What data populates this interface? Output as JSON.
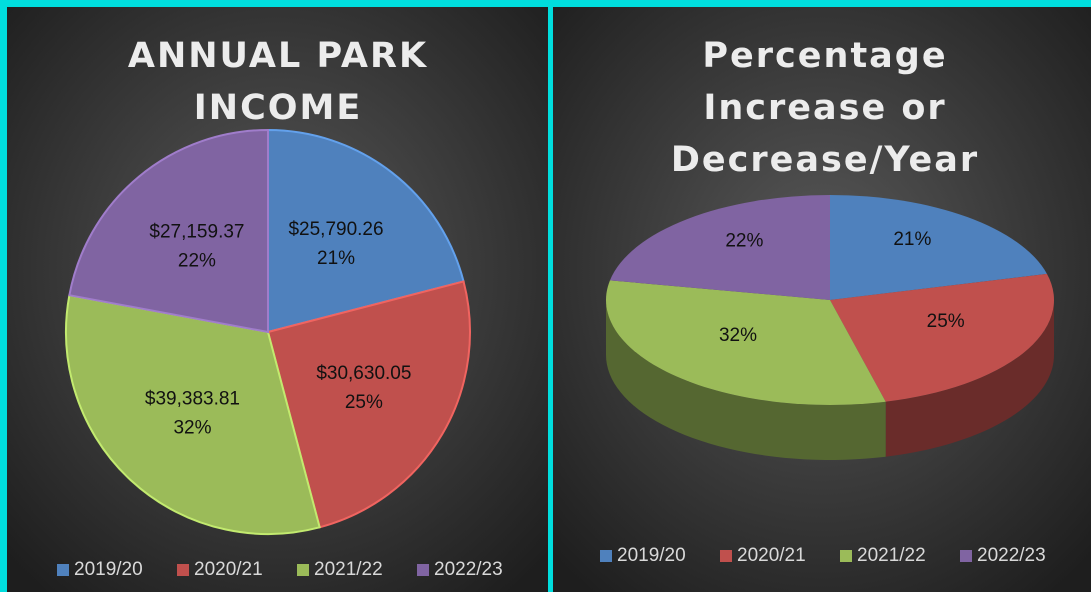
{
  "chart_data": [
    {
      "type": "pie",
      "title": "ANNUAL PARK INCOME",
      "categories": [
        "2019/20",
        "2020/21",
        "2021/22",
        "2022/23"
      ],
      "values": [
        25790.26,
        30630.05,
        39383.81,
        27159.37
      ],
      "value_labels": [
        "$25,790.26",
        "$30,630.05",
        "$39,383.81",
        "$27,159.37"
      ],
      "percent_labels": [
        "21%",
        "25%",
        "32%",
        "22%"
      ],
      "colors": [
        "#4f81bd",
        "#c0504d",
        "#9bbb59",
        "#8064a2"
      ]
    },
    {
      "type": "pie3d",
      "title": "Percentage Increase or Decrease/Year",
      "categories": [
        "2019/20",
        "2020/21",
        "2021/22",
        "2022/23"
      ],
      "values": [
        21,
        25,
        32,
        22
      ],
      "value_labels": [
        "21%",
        "25%",
        "32%",
        "22%"
      ],
      "colors": [
        "#4f81bd",
        "#c0504d",
        "#9bbb59",
        "#8064a2"
      ]
    }
  ]
}
